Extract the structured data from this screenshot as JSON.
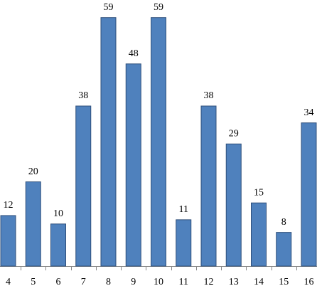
{
  "chart_data": {
    "type": "bar",
    "categories": [
      "4",
      "5",
      "6",
      "7",
      "8",
      "9",
      "10",
      "11",
      "12",
      "13",
      "14",
      "15",
      "16"
    ],
    "values": [
      12,
      20,
      10,
      38,
      59,
      48,
      59,
      11,
      38,
      29,
      15,
      8,
      34
    ],
    "color": "#4f81bd",
    "ylim": [
      0,
      63
    ]
  }
}
